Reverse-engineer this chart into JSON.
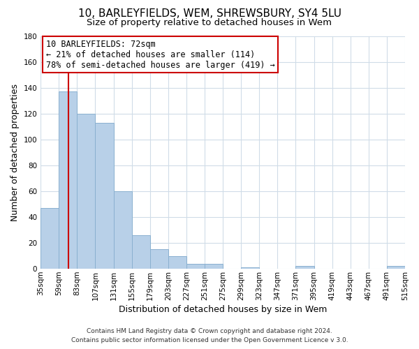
{
  "title": "10, BARLEYFIELDS, WEM, SHREWSBURY, SY4 5LU",
  "subtitle": "Size of property relative to detached houses in Wem",
  "xlabel": "Distribution of detached houses by size in Wem",
  "ylabel": "Number of detached properties",
  "bin_labels": [
    "35sqm",
    "59sqm",
    "83sqm",
    "107sqm",
    "131sqm",
    "155sqm",
    "179sqm",
    "203sqm",
    "227sqm",
    "251sqm",
    "275sqm",
    "299sqm",
    "323sqm",
    "347sqm",
    "371sqm",
    "395sqm",
    "419sqm",
    "443sqm",
    "467sqm",
    "491sqm",
    "515sqm"
  ],
  "bin_starts": [
    35,
    59,
    83,
    107,
    131,
    155,
    179,
    203,
    227,
    251,
    275,
    299,
    323,
    347,
    371,
    395,
    419,
    443,
    467,
    491,
    515
  ],
  "bin_width": 24,
  "bar_values": [
    47,
    137,
    120,
    113,
    60,
    26,
    15,
    10,
    4,
    4,
    0,
    1,
    0,
    0,
    2,
    0,
    0,
    0,
    0,
    2
  ],
  "bar_color": "#b8d0e8",
  "bar_edge_color": "#8ab0d0",
  "ylim": [
    0,
    180
  ],
  "yticks": [
    0,
    20,
    40,
    60,
    80,
    100,
    120,
    140,
    160,
    180
  ],
  "property_size": 72,
  "red_line_color": "#cc0000",
  "annotation_line1": "10 BARLEYFIELDS: 72sqm",
  "annotation_line2": "← 21% of detached houses are smaller (114)",
  "annotation_line3": "78% of semi-detached houses are larger (419) →",
  "annotation_box_color": "#ffffff",
  "annotation_box_edge": "#cc0000",
  "footer_line1": "Contains HM Land Registry data © Crown copyright and database right 2024.",
  "footer_line2": "Contains public sector information licensed under the Open Government Licence v 3.0.",
  "bg_color": "#ffffff",
  "plot_bg_color": "#ffffff",
  "grid_color": "#d0dce8",
  "title_fontsize": 11,
  "subtitle_fontsize": 9.5,
  "label_fontsize": 9,
  "tick_fontsize": 7.5,
  "footer_fontsize": 6.5,
  "annotation_fontsize": 8.5
}
